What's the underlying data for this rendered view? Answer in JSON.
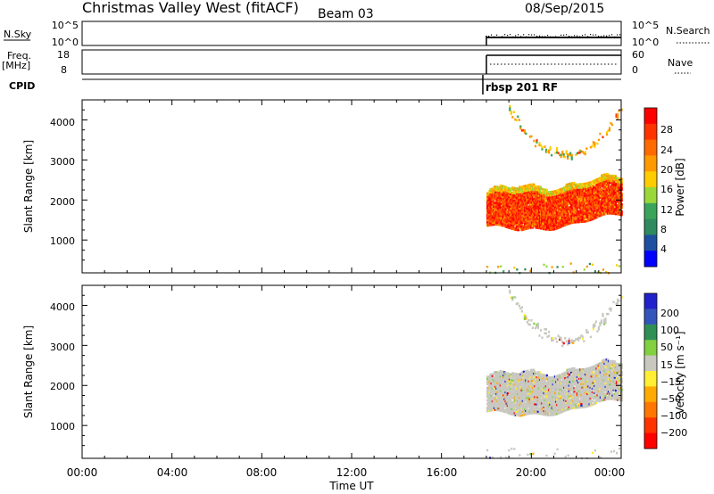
{
  "header": {
    "station": "Christmas Valley West (fitACF)",
    "beam": "Beam 03",
    "date": "08/Sep/2015"
  },
  "sky_panel": {
    "left_label": "N.Sky",
    "left_ticks": [
      "10^5",
      "10^0"
    ],
    "right_ticks": [
      "10^5",
      "10^0"
    ],
    "right_label": "N.Search"
  },
  "freq_panel": {
    "left_label_1": "Freq.",
    "left_label_2": "[MHz]",
    "left_ticks": [
      "18",
      "8"
    ],
    "right_ticks": [
      "60",
      "0"
    ],
    "right_label": "Nave"
  },
  "cpid": {
    "label": "CPID",
    "program": "rbsp 201 RF"
  },
  "power_panel": {
    "ylabel": "Slant Range [km]",
    "yticks": [
      "4000",
      "3000",
      "2000",
      "1000"
    ],
    "colorbar_label": "Power [dB]",
    "colorbar_ticks": [
      "28",
      "24",
      "20",
      "16",
      "12",
      "8",
      "4"
    ]
  },
  "velocity_panel": {
    "ylabel": "Slant Range [km]",
    "yticks": [
      "4000",
      "3000",
      "2000",
      "1000"
    ],
    "colorbar_label": "Velocity [m s⁻¹]",
    "colorbar_ticks": [
      "200",
      "100",
      "50",
      "15",
      "−15",
      "−50",
      "−100",
      "−200"
    ]
  },
  "xaxis": {
    "ticks": [
      "00:00",
      "04:00",
      "08:00",
      "12:00",
      "16:00",
      "20:00",
      "00:00"
    ],
    "label": "Time UT"
  },
  "chart_data": {
    "type": "heatmap",
    "x_range_hours": [
      0,
      24
    ],
    "range_km": [
      180,
      4500
    ],
    "data_start_hour": 18,
    "power_colors": [
      "#0000ff",
      "#1f4fa0",
      "#2f8a60",
      "#3aa55a",
      "#9ad83a",
      "#ffcc00",
      "#ff9900",
      "#ff6a00",
      "#ff3300",
      "#ff0000"
    ],
    "velocity_colors": [
      "#2222cc",
      "#3355bb",
      "#2f8f55",
      "#80d040",
      "#c8c8c0",
      "#ffee33",
      "#ffaa00",
      "#ff7700",
      "#ff3300",
      "#ff0000"
    ],
    "main_band": {
      "hours": [
        18,
        24
      ],
      "low_km": [
        1200,
        1700
      ],
      "high_km": [
        2200,
        2600
      ]
    },
    "upper_arc": {
      "hours": [
        19,
        24
      ],
      "km": [
        4300,
        3100,
        4300
      ]
    }
  }
}
